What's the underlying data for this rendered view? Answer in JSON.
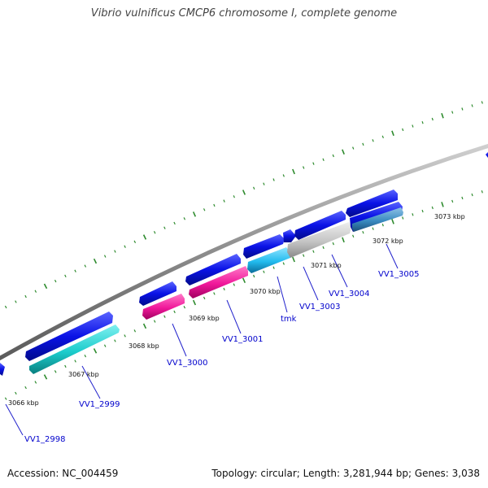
{
  "title": "Vibrio vulnificus CMCP6 chromosome I, complete genome",
  "accession": "Accession: NC_004459",
  "summary": "Topology: circular; Length: 3,281,944 bp; Genes: 3,038",
  "colors": {
    "cds_blue": "#0a12e6",
    "gene_cyan": "#1ccccc",
    "gene_pink": "#f0189a",
    "gene_lightblue": "#22bbee",
    "gene_gray": "#bdbdbd",
    "gene_steel": "#3a8bc0",
    "backbone": "#8c8c8c",
    "tick": "#2e8b2e",
    "label_blue": "#0000cc"
  },
  "scale_labels": [
    "3066 kbp",
    "3067 kbp",
    "3068 kbp",
    "3069 kbp",
    "3070 kbp",
    "3071 kbp",
    "3072 kbp",
    "3073 kbp"
  ],
  "gene_labels": [
    "VV1_2998",
    "VV1_2999",
    "VV1_3000",
    "VV1_3001",
    "tmk",
    "VV1_3003",
    "VV1_3004",
    "VV1_3005"
  ]
}
